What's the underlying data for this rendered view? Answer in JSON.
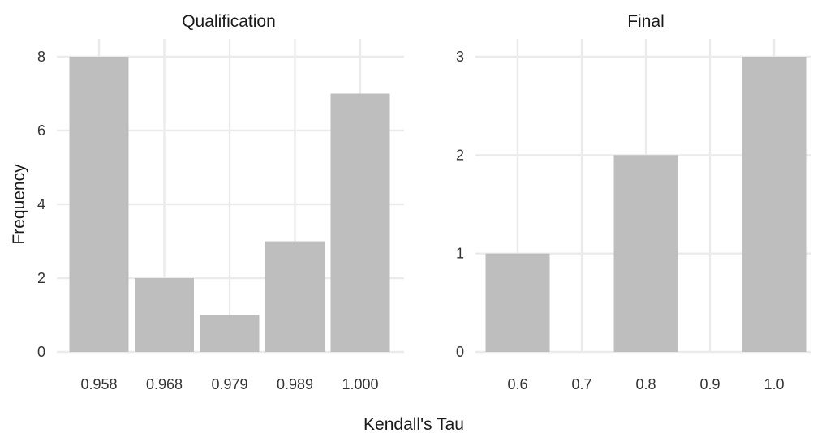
{
  "chart_data": [
    {
      "type": "bar",
      "title": "Qualification",
      "categories": [
        "0.958",
        "0.968",
        "0.979",
        "0.989",
        "1.000"
      ],
      "values": [
        8,
        2,
        1,
        3,
        7
      ],
      "ylim": [
        0,
        8
      ],
      "yticks": [
        "0",
        "2",
        "4",
        "6",
        "8"
      ],
      "grid": true,
      "bar_color": "#bebebe"
    },
    {
      "type": "bar",
      "title": "Final",
      "categories": [
        "0.6",
        "0.7",
        "0.8",
        "0.9",
        "1.0"
      ],
      "values": [
        1,
        0,
        2,
        0,
        3
      ],
      "ylim": [
        0,
        3
      ],
      "yticks": [
        "0",
        "1",
        "2",
        "3"
      ],
      "grid": true,
      "bar_color": "#bebebe"
    }
  ],
  "xlabel": "Kendall's Tau",
  "ylabel": "Frequency"
}
